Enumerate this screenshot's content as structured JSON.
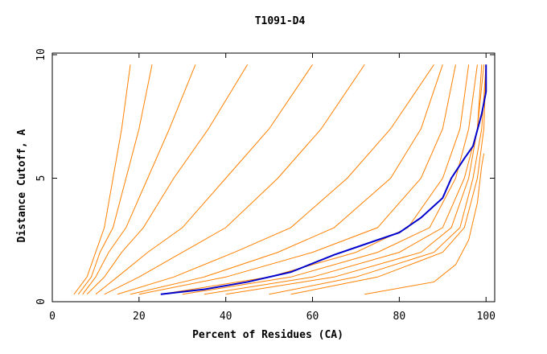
{
  "chart_data": {
    "type": "line",
    "title": "T1091-D4",
    "xlabel": "Percent of Residues (CA)",
    "ylabel": "Distance Cutoff, A",
    "xlim": [
      0,
      102
    ],
    "ylim": [
      0,
      10
    ],
    "xticks": [
      0,
      20,
      40,
      60,
      80,
      100
    ],
    "yticks": [
      0,
      5,
      10
    ],
    "series": [
      {
        "color": "#ff8000",
        "x": [
          5,
          8,
          10,
          12,
          14,
          16,
          18
        ],
        "values": [
          0.3,
          1,
          2,
          3,
          5,
          7,
          9.6
        ]
      },
      {
        "color": "#ff8000",
        "x": [
          6,
          9,
          11,
          14,
          17,
          20,
          23
        ],
        "values": [
          0.3,
          1,
          2,
          3,
          5,
          7,
          9.6
        ]
      },
      {
        "color": "#ff8000",
        "x": [
          7,
          10,
          13,
          17,
          22,
          27,
          33
        ],
        "values": [
          0.3,
          1,
          2,
          3,
          5,
          7,
          9.6
        ]
      },
      {
        "color": "#ff8000",
        "x": [
          8,
          12,
          16,
          21,
          28,
          36,
          45
        ],
        "values": [
          0.3,
          1,
          2,
          3,
          5,
          7,
          9.6
        ]
      },
      {
        "color": "#ff8000",
        "x": [
          10,
          15,
          22,
          30,
          40,
          50,
          60
        ],
        "values": [
          0.3,
          1,
          2,
          3,
          5,
          7,
          9.6
        ]
      },
      {
        "color": "#ff8000",
        "x": [
          12,
          20,
          30,
          40,
          52,
          62,
          72
        ],
        "values": [
          0.3,
          1,
          2,
          3,
          5,
          7,
          9.6
        ]
      },
      {
        "color": "#ff8000",
        "x": [
          15,
          28,
          42,
          55,
          68,
          78,
          88
        ],
        "values": [
          0.3,
          1,
          2,
          3,
          5,
          7,
          9.6
        ]
      },
      {
        "color": "#ff8000",
        "x": [
          18,
          35,
          52,
          65,
          78,
          85,
          90
        ],
        "values": [
          0.3,
          1,
          2,
          3,
          5,
          7,
          9.6
        ]
      },
      {
        "color": "#ff8000",
        "x": [
          20,
          40,
          60,
          75,
          85,
          90,
          93
        ],
        "values": [
          0.3,
          1,
          2,
          3,
          5,
          7,
          9.6
        ]
      },
      {
        "color": "#ff8000",
        "x": [
          25,
          50,
          70,
          82,
          90,
          94,
          96
        ],
        "values": [
          0.3,
          1,
          2,
          3,
          5,
          7,
          9.6
        ]
      },
      {
        "color": "#ff8000",
        "x": [
          30,
          55,
          75,
          87,
          93,
          96,
          98
        ],
        "values": [
          0.3,
          1,
          2,
          3,
          5,
          7,
          9.6
        ]
      },
      {
        "color": "#ff8000",
        "x": [
          35,
          60,
          80,
          90,
          95,
          98,
          99
        ],
        "values": [
          0.3,
          1,
          2,
          3,
          5,
          7,
          9.6
        ]
      },
      {
        "color": "#ff8000",
        "x": [
          40,
          65,
          85,
          92,
          96,
          98,
          99.5
        ],
        "values": [
          0.3,
          1,
          2,
          3,
          5,
          7,
          9.6
        ]
      },
      {
        "color": "#ff8000",
        "x": [
          50,
          70,
          88,
          94,
          97,
          99,
          100
        ],
        "values": [
          0.3,
          1,
          2,
          3,
          5,
          7,
          9.6
        ]
      },
      {
        "color": "#ff8000",
        "x": [
          55,
          75,
          90,
          95,
          98,
          99.5,
          100
        ],
        "values": [
          0.3,
          1,
          2,
          3,
          5,
          7,
          9.6
        ]
      },
      {
        "color": "#ff8000",
        "x": [
          72,
          88,
          93,
          96,
          98,
          99,
          99.5
        ],
        "values": [
          0.3,
          0.8,
          1.5,
          2.5,
          4,
          5.5,
          6
        ]
      },
      {
        "color": "#0000cc",
        "x": [
          25,
          35,
          45,
          55,
          65,
          75,
          80,
          85,
          90,
          92,
          95,
          97,
          99,
          100,
          100
        ],
        "values": [
          0.3,
          0.5,
          0.8,
          1.2,
          1.9,
          2.5,
          2.8,
          3.4,
          4.2,
          5,
          5.8,
          6.3,
          7.6,
          8.5,
          9.6
        ]
      }
    ]
  }
}
